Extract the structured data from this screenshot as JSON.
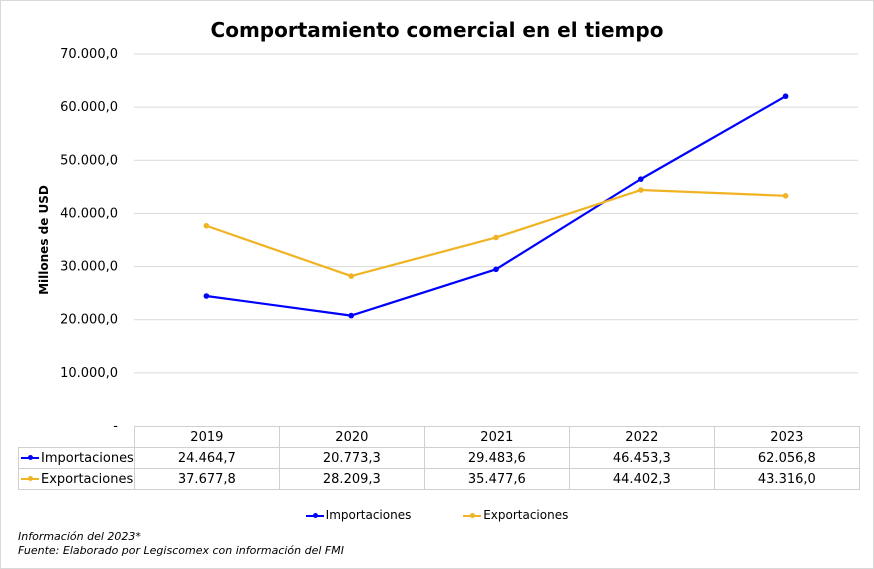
{
  "chart_data": {
    "type": "line",
    "title": "Comportamiento comercial en el tiempo",
    "ylabel": "Millones de USD",
    "categories": [
      "2019",
      "2020",
      "2021",
      "2022",
      "2023"
    ],
    "series": [
      {
        "name": "Importaciones",
        "color": "#0000ff",
        "values": [
          24464.7,
          20773.3,
          29483.6,
          46453.3,
          62056.8
        ],
        "labels": [
          "24.464,7",
          "20.773,3",
          "29.483,6",
          "46.453,3",
          "62.056,8"
        ]
      },
      {
        "name": "Exportaciones",
        "color": "#f0b323",
        "values": [
          37677.8,
          28209.3,
          35477.6,
          44402.3,
          43316.0
        ],
        "labels": [
          "37.677,8",
          "28.209,3",
          "35.477,6",
          "44.402,3",
          "43.316,0"
        ]
      }
    ],
    "ylim": [
      0,
      70000
    ],
    "yticks": [
      "-",
      "10.000,0",
      "20.000,0",
      "30.000,0",
      "40.000,0",
      "50.000,0",
      "60.000,0",
      "70.000,0"
    ],
    "grid": true,
    "legend_position": "bottom"
  },
  "footnotes": {
    "line1": "Información del 2023*",
    "line2": "Fuente: Elaborado por Legiscomex con información del FMI"
  }
}
